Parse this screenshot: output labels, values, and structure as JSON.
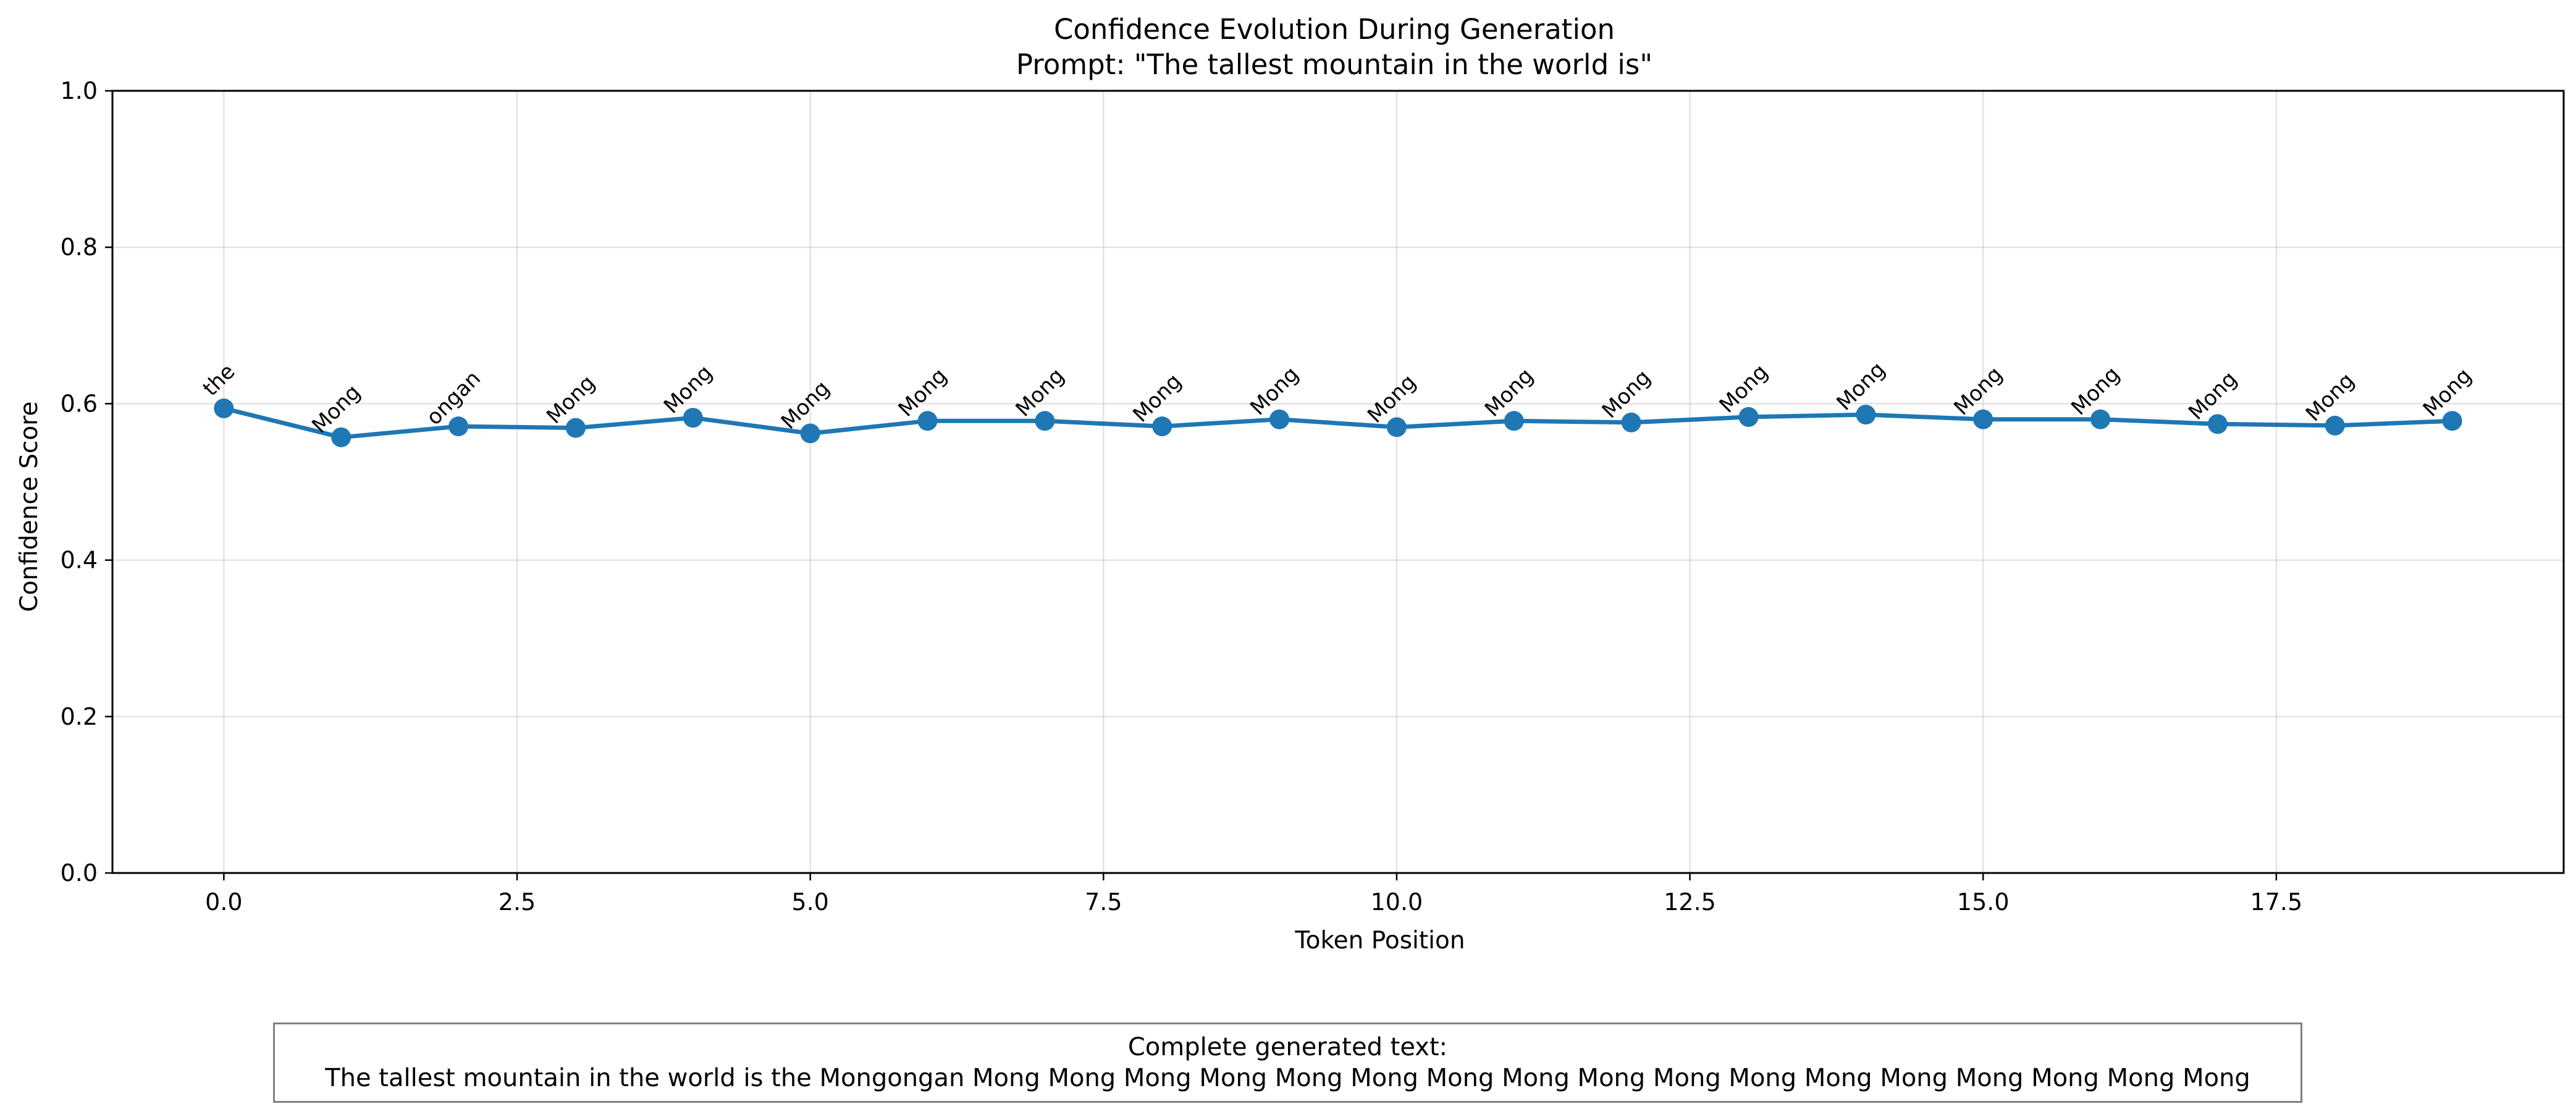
{
  "chart_data": {
    "type": "line",
    "title": "Confidence Evolution During Generation",
    "subtitle": "Prompt: \"The tallest mountain in the world is\"",
    "xlabel": "Token Position",
    "ylabel": "Confidence Score",
    "xlim": [
      -0.95,
      19.95
    ],
    "ylim": [
      0.0,
      1.0
    ],
    "x_ticks": [
      0.0,
      2.5,
      5.0,
      7.5,
      10.0,
      12.5,
      15.0,
      17.5
    ],
    "x_tick_labels": [
      "0.0",
      "2.5",
      "5.0",
      "7.5",
      "10.0",
      "12.5",
      "15.0",
      "17.5"
    ],
    "y_ticks": [
      0.0,
      0.2,
      0.4,
      0.6,
      0.8,
      1.0
    ],
    "y_tick_labels": [
      "0.0",
      "0.2",
      "0.4",
      "0.6",
      "0.8",
      "1.0"
    ],
    "grid": true,
    "line_color": "#1f77b4",
    "x": [
      0,
      1,
      2,
      3,
      4,
      5,
      6,
      7,
      8,
      9,
      10,
      11,
      12,
      13,
      14,
      15,
      16,
      17,
      18,
      19
    ],
    "values": [
      0.594,
      0.557,
      0.571,
      0.569,
      0.582,
      0.562,
      0.578,
      0.578,
      0.571,
      0.58,
      0.57,
      0.578,
      0.576,
      0.583,
      0.586,
      0.58,
      0.58,
      0.574,
      0.572,
      0.578
    ],
    "point_labels": [
      "the",
      "Mong",
      "ongan",
      "Mong",
      "Mong",
      "Mong",
      "Mong",
      "Mong",
      "Mong",
      "Mong",
      "Mong",
      "Mong",
      "Mong",
      "Mong",
      "Mong",
      "Mong",
      "Mong",
      "Mong",
      "Mong",
      "Mong"
    ]
  },
  "footer": {
    "heading": "Complete generated text:",
    "text": "The tallest mountain in the world is the Mongongan Mong Mong Mong Mong Mong Mong Mong Mong Mong Mong Mong Mong Mong Mong Mong Mong Mong"
  }
}
